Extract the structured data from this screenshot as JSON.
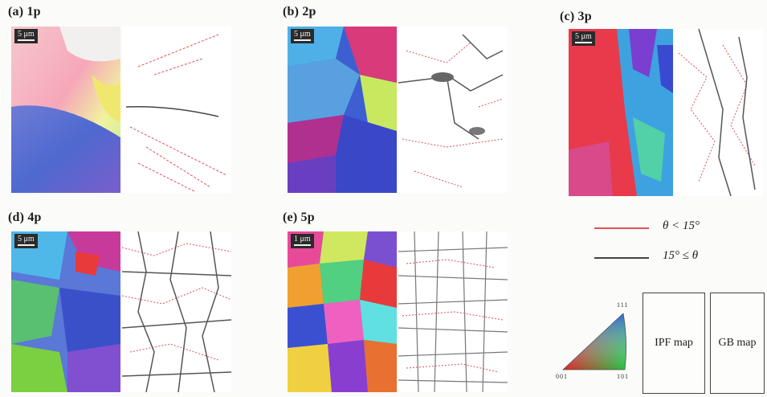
{
  "panels": [
    {
      "label": "(a) 1p",
      "scale": "5 μm"
    },
    {
      "label": "(b) 2p",
      "scale": "5 μm"
    },
    {
      "label": "(c) 3p",
      "scale": "5 μm"
    },
    {
      "label": "(d) 4p",
      "scale": "5 μm"
    },
    {
      "label": "(e) 5p",
      "scale": "1 μm"
    }
  ],
  "legend": {
    "low_angle": {
      "text": "θ < 15°",
      "color": "#e0505a"
    },
    "high_angle": {
      "text": "15° ≤ θ",
      "color": "#444444"
    }
  },
  "ipf_key": {
    "top": "111",
    "bottom_left": "001",
    "bottom_right": "101"
  },
  "map_key": {
    "ipf": "IPF map",
    "gb": "GB map"
  }
}
